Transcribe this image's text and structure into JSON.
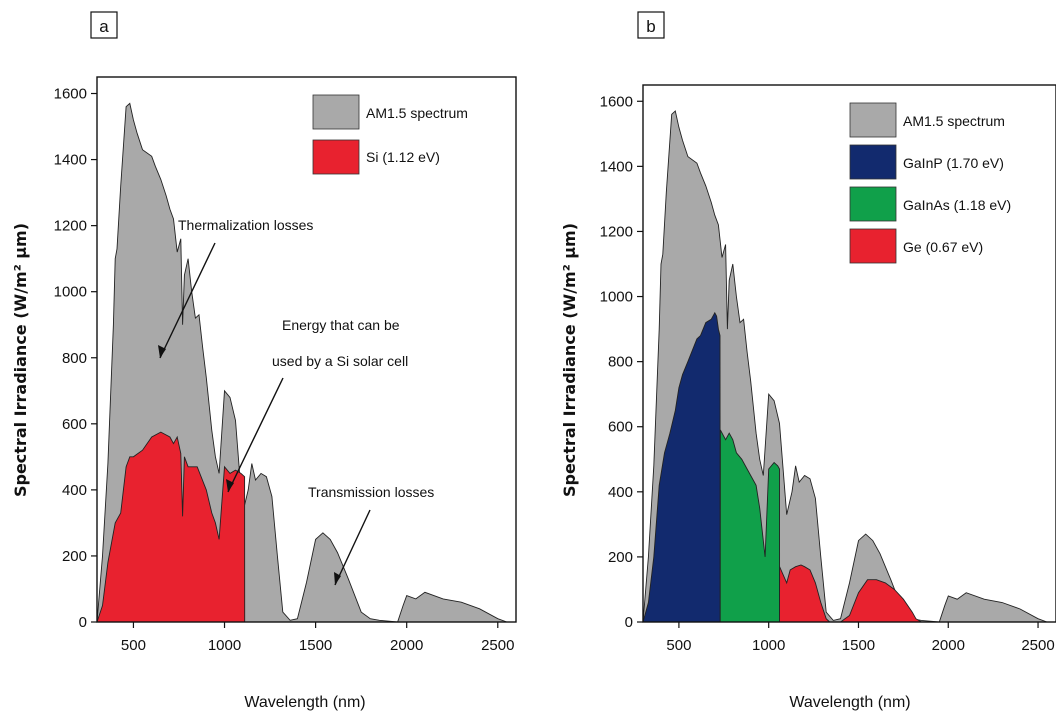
{
  "colors": {
    "am15": "#a9a9a9",
    "si": "#e8222f",
    "gainp": "#122a6e",
    "gainas": "#10a04a",
    "ge": "#e8222f"
  },
  "chart_data": [
    {
      "type": "area",
      "panel_label": "a",
      "xlabel": "Wavelength (nm)",
      "ylabel": "Spectral Irradiance (W/m² µm)",
      "xlim": [
        300,
        2600
      ],
      "ylim": [
        0,
        1650
      ],
      "xticks": [
        500,
        1000,
        1500,
        2000,
        2500
      ],
      "yticks": [
        0,
        200,
        400,
        600,
        800,
        1000,
        1200,
        1400,
        1600
      ],
      "legend": {
        "placement": "top-right",
        "entries": [
          "AM1.5 spectrum",
          "Si (1.12 eV)"
        ]
      },
      "series": [
        {
          "name": "AM1.5 spectrum",
          "color": "am15",
          "x": [
            300,
            330,
            360,
            390,
            400,
            410,
            430,
            460,
            480,
            500,
            520,
            550,
            600,
            620,
            650,
            680,
            700,
            720,
            740,
            760,
            770,
            780,
            800,
            820,
            840,
            860,
            880,
            900,
            930,
            950,
            970,
            1000,
            1030,
            1060,
            1100,
            1130,
            1150,
            1170,
            1200,
            1230,
            1260,
            1290,
            1320,
            1360,
            1400,
            1450,
            1500,
            1540,
            1580,
            1620,
            1680,
            1750,
            1800,
            1850,
            1950,
            1980,
            2000,
            2050,
            2100,
            2200,
            2300,
            2400,
            2500,
            2550
          ],
          "values": [
            0,
            200,
            480,
            900,
            1100,
            1130,
            1320,
            1560,
            1570,
            1520,
            1480,
            1430,
            1410,
            1380,
            1340,
            1290,
            1250,
            1220,
            1120,
            1160,
            900,
            1050,
            1100,
            1000,
            920,
            930,
            830,
            740,
            580,
            500,
            450,
            700,
            680,
            610,
            330,
            400,
            480,
            430,
            450,
            440,
            380,
            200,
            30,
            5,
            10,
            120,
            250,
            270,
            250,
            210,
            130,
            30,
            10,
            5,
            0,
            50,
            80,
            70,
            90,
            70,
            60,
            40,
            10,
            0
          ]
        },
        {
          "name": "Si (1.12 eV)",
          "color": "si",
          "x": [
            300,
            330,
            360,
            400,
            430,
            460,
            480,
            500,
            550,
            600,
            650,
            700,
            720,
            740,
            760,
            770,
            780,
            800,
            850,
            900,
            930,
            950,
            970,
            1000,
            1030,
            1060,
            1090,
            1110,
            1111
          ],
          "values": [
            0,
            50,
            180,
            300,
            330,
            470,
            500,
            500,
            520,
            560,
            575,
            560,
            540,
            560,
            510,
            320,
            500,
            470,
            470,
            400,
            330,
            300,
            250,
            470,
            450,
            460,
            450,
            440,
            0
          ]
        }
      ],
      "annotations": [
        {
          "lines": [
            "Thermalization losses"
          ]
        },
        {
          "lines": [
            "Energy that can be",
            "used by a Si solar cell"
          ]
        },
        {
          "lines": [
            "Transmission losses"
          ]
        }
      ]
    },
    {
      "type": "area",
      "panel_label": "b",
      "xlabel": "Wavelength (nm)",
      "ylabel": "Spectral Irradiance (W/m² µm)",
      "xlim": [
        300,
        2600
      ],
      "ylim": [
        0,
        1650
      ],
      "xticks": [
        500,
        1000,
        1500,
        2000,
        2500
      ],
      "yticks": [
        0,
        200,
        400,
        600,
        800,
        1000,
        1200,
        1400,
        1600
      ],
      "legend": {
        "placement": "top-right",
        "entries": [
          "AM1.5 spectrum",
          "GaInP (1.70 eV)",
          "GaInAs (1.18 eV)",
          "Ge (0.67 eV)"
        ]
      },
      "series": [
        {
          "name": "AM1.5 spectrum",
          "color": "am15",
          "x": [
            300,
            330,
            360,
            390,
            400,
            410,
            430,
            460,
            480,
            500,
            520,
            550,
            600,
            620,
            650,
            680,
            700,
            720,
            740,
            760,
            770,
            780,
            800,
            820,
            840,
            860,
            880,
            900,
            930,
            950,
            970,
            1000,
            1030,
            1060,
            1100,
            1130,
            1150,
            1170,
            1200,
            1230,
            1260,
            1290,
            1320,
            1360,
            1400,
            1450,
            1500,
            1540,
            1580,
            1620,
            1680,
            1750,
            1800,
            1850,
            1950,
            1980,
            2000,
            2050,
            2100,
            2200,
            2300,
            2400,
            2500,
            2550
          ],
          "values": [
            0,
            200,
            480,
            900,
            1100,
            1130,
            1320,
            1560,
            1570,
            1520,
            1480,
            1430,
            1410,
            1380,
            1340,
            1290,
            1250,
            1220,
            1120,
            1160,
            900,
            1050,
            1100,
            1000,
            920,
            930,
            830,
            740,
            580,
            500,
            450,
            700,
            680,
            610,
            330,
            400,
            480,
            430,
            450,
            440,
            380,
            200,
            30,
            5,
            10,
            120,
            250,
            270,
            250,
            210,
            130,
            30,
            10,
            5,
            0,
            50,
            80,
            70,
            90,
            70,
            60,
            40,
            10,
            0
          ]
        },
        {
          "name": "GaInP (1.70 eV)",
          "color": "gainp",
          "x": [
            300,
            330,
            360,
            390,
            420,
            450,
            480,
            500,
            520,
            550,
            600,
            620,
            650,
            680,
            700,
            710,
            720,
            729,
            730
          ],
          "values": [
            0,
            60,
            200,
            420,
            520,
            580,
            650,
            720,
            760,
            800,
            870,
            880,
            920,
            930,
            950,
            940,
            900,
            880,
            0
          ]
        },
        {
          "name": "GaInAs (1.18 eV)",
          "color": "gainas",
          "x": [
            730,
            731,
            760,
            780,
            800,
            820,
            850,
            880,
            900,
            930,
            950,
            980,
            1000,
            1030,
            1050,
            1060,
            1061
          ],
          "values": [
            0,
            590,
            560,
            580,
            560,
            520,
            500,
            470,
            450,
            420,
            350,
            200,
            470,
            490,
            480,
            470,
            0
          ]
        },
        {
          "name": "Ge (0.67 eV)",
          "color": "ge",
          "x": [
            1060,
            1061,
            1100,
            1120,
            1150,
            1180,
            1200,
            1230,
            1260,
            1290,
            1320,
            1340,
            1360,
            1400,
            1450,
            1500,
            1550,
            1600,
            1650,
            1700,
            1750,
            1800,
            1820,
            1850
          ],
          "values": [
            0,
            170,
            120,
            160,
            170,
            175,
            170,
            160,
            120,
            60,
            10,
            0,
            0,
            0,
            20,
            90,
            130,
            130,
            120,
            100,
            70,
            30,
            10,
            0
          ]
        }
      ],
      "annotations": []
    }
  ]
}
